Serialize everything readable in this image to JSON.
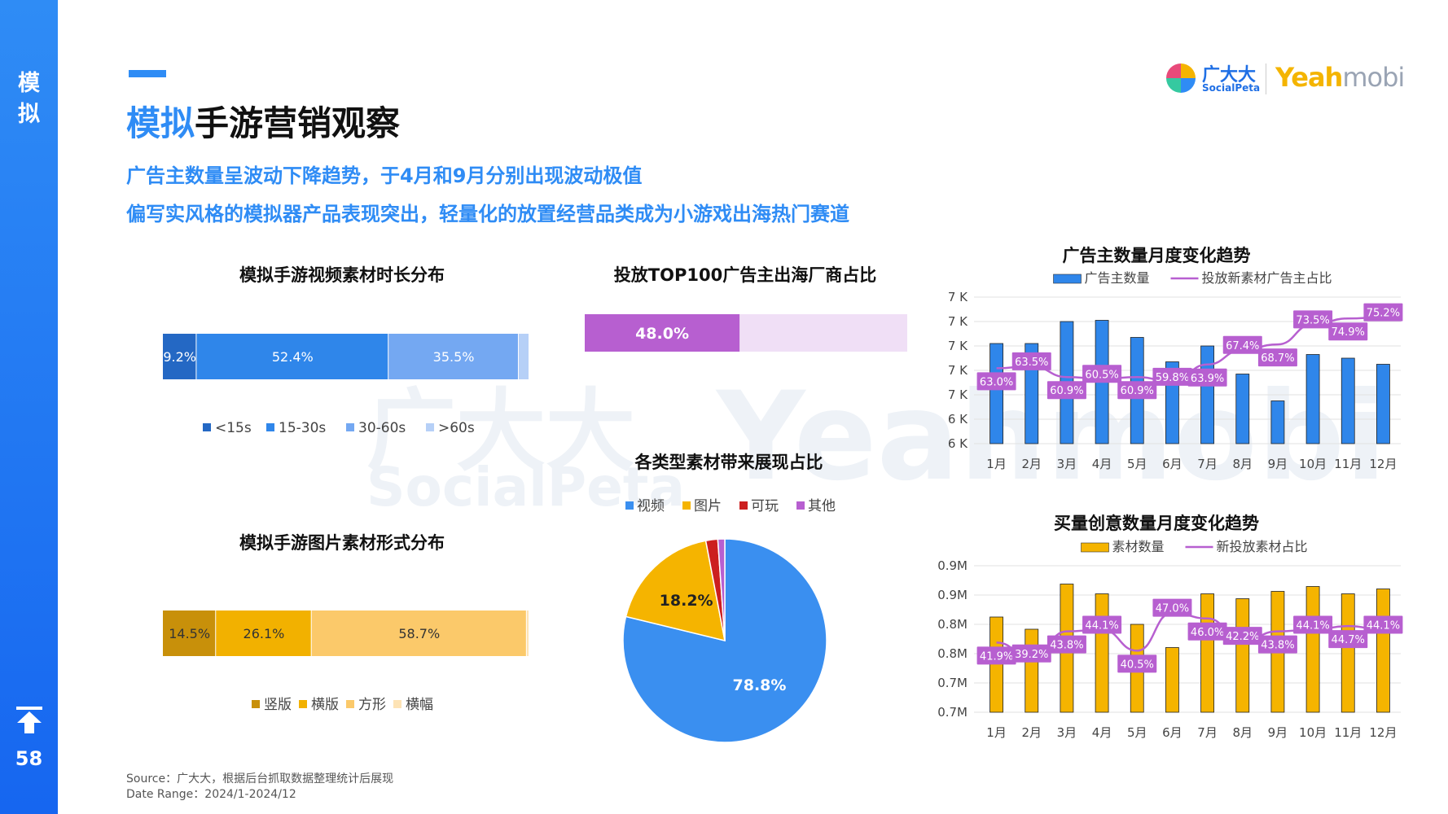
{
  "sidebar": {
    "section_label_1": "模",
    "section_label_2": "拟",
    "page_number": "58"
  },
  "header": {
    "title_highlight": "模拟",
    "title_rest": "手游营销观察",
    "subtitle_1": "广告主数量呈波动下降趋势，于4月和9月分别出现波动极值",
    "subtitle_2": "偏写实风格的模拟器产品表现突出，轻量化的放置经营品类成为小游戏出海热门赛道"
  },
  "logo": {
    "brand_cn": "广大大",
    "brand_en": "SocialPeta",
    "partner_main": "Yeah",
    "partner_tail": "mobi"
  },
  "watermark": {
    "text_cn": "广大大",
    "text_en": "SocialPeta",
    "text_partner": "Yeahmobi"
  },
  "colors": {
    "accent": "#2f8cf5",
    "sidebar": "#1666f0",
    "purple": "#b75fd0",
    "yellow": "#f5b400",
    "gold": "#c8900a",
    "red": "#cc1f1f"
  },
  "chart_data": [
    {
      "id": "video-duration",
      "type": "bar",
      "orientation": "horizontal-stacked-100",
      "title": "模拟手游视频素材时长分布",
      "series": [
        {
          "name": "<15s",
          "value": 9.2,
          "label": "9.2%",
          "color": "#2468c4"
        },
        {
          "name": "15-30s",
          "value": 52.4,
          "label": "52.4%",
          "color": "#2f86ea"
        },
        {
          "name": "30-60s",
          "value": 35.5,
          "label": "35.5%",
          "color": "#74a8f2"
        },
        {
          "name": ">60s",
          "value": 2.9,
          "label": "",
          "color": "#b6d0f7"
        }
      ],
      "legend_position": "bottom"
    },
    {
      "id": "top100-share",
      "type": "bar",
      "orientation": "horizontal-progress",
      "title": "投放TOP100广告主出海厂商占比",
      "value": 48.0,
      "label": "48.0%",
      "max": 100,
      "color": "#b75fd0",
      "track_color": "#f0dff6"
    },
    {
      "id": "image-format",
      "type": "bar",
      "orientation": "horizontal-stacked-100",
      "title": "模拟手游图片素材形式分布",
      "series": [
        {
          "name": "竖版",
          "value": 14.5,
          "label": "14.5%",
          "color": "#c8900a"
        },
        {
          "name": "横版",
          "value": 26.1,
          "label": "26.1%",
          "color": "#f2b100"
        },
        {
          "name": "方形",
          "value": 58.7,
          "label": "58.7%",
          "color": "#fbc96a"
        },
        {
          "name": "横幅",
          "value": 0.7,
          "label": "",
          "color": "#fde3b5"
        }
      ],
      "legend_position": "bottom"
    },
    {
      "id": "creative-type-share",
      "type": "pie",
      "title": "各类型素材带来展现占比",
      "slices": [
        {
          "name": "视频",
          "value": 78.8,
          "label": "78.8%",
          "color": "#3a8ff0"
        },
        {
          "name": "图片",
          "value": 18.2,
          "label": "18.2%",
          "color": "#f5b400"
        },
        {
          "name": "可玩",
          "value": 1.9,
          "label": "",
          "color": "#cc1f1f"
        },
        {
          "name": "其他",
          "value": 1.1,
          "label": "",
          "color": "#b75fd0"
        }
      ],
      "legend_position": "top"
    },
    {
      "id": "advertiser-trend",
      "type": "bar",
      "combo": "bar+line",
      "title": "广告主数量月度变化趋势",
      "categories": [
        "1月",
        "2月",
        "3月",
        "4月",
        "5月",
        "6月",
        "7月",
        "8月",
        "9月",
        "10月",
        "11月",
        "12月"
      ],
      "series": [
        {
          "name": "广告主数量",
          "type": "bar",
          "axis": "left",
          "values": [
            82,
            82,
            100,
            101,
            87,
            67,
            80,
            57,
            35,
            73,
            70,
            65
          ],
          "color": "#2f86ea"
        },
        {
          "name": "投放新素材广告主占比",
          "type": "line",
          "axis": "right",
          "values": [
            63.0,
            63.5,
            60.9,
            60.5,
            60.9,
            59.8,
            63.9,
            67.4,
            68.7,
            73.5,
            74.9,
            75.2
          ],
          "labels": [
            "63.0%",
            "63.5%",
            "60.9%",
            "60.5%",
            "60.9%",
            "59.8%",
            "63.9%",
            "67.4%",
            "68.7%",
            "73.5%",
            "74.9%",
            "75.2%"
          ],
          "color": "#b75fd0"
        }
      ],
      "yticks_left": [
        "7 K",
        "7 K",
        "7 K",
        "7 K",
        "7 K",
        "6 K",
        "6 K"
      ],
      "ylim_left": [
        0,
        120
      ],
      "ylim_right": [
        45,
        80
      ],
      "legend_position": "top",
      "grid": true
    },
    {
      "id": "creative-count-trend",
      "type": "bar",
      "combo": "bar+line",
      "title": "买量创意数量月度变化趋势",
      "categories": [
        "1月",
        "2月",
        "3月",
        "4月",
        "5月",
        "6月",
        "7月",
        "8月",
        "9月",
        "10月",
        "11月",
        "12月"
      ],
      "series": [
        {
          "name": "素材数量",
          "type": "bar",
          "axis": "left",
          "values": [
            78,
            68,
            105,
            97,
            72,
            53,
            97,
            93,
            99,
            103,
            97,
            101
          ],
          "color": "#f5b400"
        },
        {
          "name": "新投放素材占比",
          "type": "line",
          "axis": "right",
          "values": [
            41.9,
            39.2,
            43.8,
            44.1,
            40.5,
            47.0,
            46.0,
            42.2,
            43.8,
            44.1,
            44.7,
            44.1
          ],
          "labels": [
            "41.9%",
            "39.2%",
            "43.8%",
            "44.1%",
            "40.5%",
            "47.0%",
            "46.0%",
            "42.2%",
            "43.8%",
            "44.1%",
            "44.7%",
            "44.1%"
          ],
          "color": "#b75fd0"
        }
      ],
      "yticks_left": [
        "0.9M",
        "0.9M",
        "0.8M",
        "0.8M",
        "0.7M",
        "0.7M"
      ],
      "ylim_left": [
        0,
        120
      ],
      "ylim_right": [
        30,
        55
      ],
      "legend_position": "top",
      "grid": true
    }
  ],
  "source": {
    "line1": "Source：广大大，根据后台抓取数据整理统计后展现",
    "line2": "Date Range：2024/1-2024/12"
  }
}
